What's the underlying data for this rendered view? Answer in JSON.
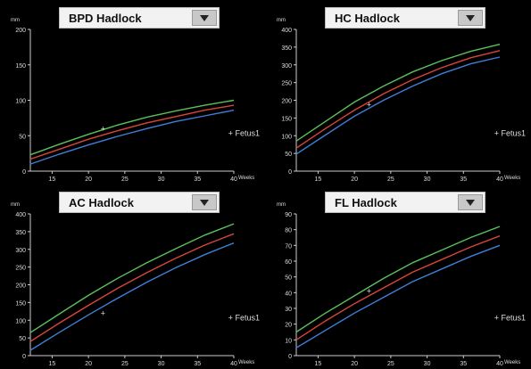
{
  "panels": [
    {
      "dropdown_label": "BPD Hadlock",
      "dropdown_icon": "chevron-down-icon",
      "chart_data": {
        "type": "line",
        "ylabel": "mm",
        "xlabel": "Weeks",
        "xlim": [
          12,
          40
        ],
        "ylim": [
          0,
          200
        ],
        "xticks": [
          15,
          20,
          25,
          30,
          35,
          40
        ],
        "yticks": [
          0,
          50,
          100,
          150,
          200
        ],
        "x": [
          12,
          16,
          20,
          24,
          28,
          32,
          36,
          40
        ],
        "series": [
          {
            "color": "#5bc05b",
            "values": [
              23,
              38,
              52,
              65,
              76,
              85,
              93,
              100
            ]
          },
          {
            "color": "#d9453a",
            "values": [
              17,
              31,
              45,
              57,
              68,
              77,
              86,
              93
            ]
          },
          {
            "color": "#3f7fd8",
            "values": [
              10,
              24,
              37,
              49,
              60,
              70,
              78,
              86
            ]
          }
        ],
        "marker": {
          "x": 22,
          "y": 60,
          "symbol": "+"
        },
        "legend": "+ Fetus1"
      }
    },
    {
      "dropdown_label": "HC Hadlock",
      "dropdown_icon": "chevron-down-icon",
      "chart_data": {
        "type": "line",
        "ylabel": "mm",
        "xlabel": "Weeks",
        "xlim": [
          12,
          40
        ],
        "ylim": [
          0,
          400
        ],
        "xticks": [
          15,
          20,
          25,
          30,
          35,
          40
        ],
        "yticks": [
          0,
          50,
          100,
          150,
          200,
          250,
          300,
          350,
          400
        ],
        "x": [
          12,
          16,
          20,
          24,
          28,
          32,
          36,
          40
        ],
        "series": [
          {
            "color": "#5bc05b",
            "values": [
              85,
              140,
              195,
              240,
              280,
              312,
              338,
              358
            ]
          },
          {
            "color": "#d9453a",
            "values": [
              65,
              120,
              172,
              218,
              258,
              292,
              320,
              340
            ]
          },
          {
            "color": "#3f7fd8",
            "values": [
              48,
              102,
              155,
              200,
              240,
              275,
              303,
              322
            ]
          }
        ],
        "marker": {
          "x": 22,
          "y": 188,
          "symbol": "+"
        },
        "legend": "+ Fetus1"
      }
    },
    {
      "dropdown_label": "AC Hadlock",
      "dropdown_icon": "chevron-down-icon",
      "chart_data": {
        "type": "line",
        "ylabel": "mm",
        "xlabel": "Weeks",
        "xlim": [
          12,
          40
        ],
        "ylim": [
          0,
          400
        ],
        "xticks": [
          15,
          20,
          25,
          30,
          35,
          40
        ],
        "yticks": [
          0,
          50,
          100,
          150,
          200,
          250,
          300,
          350,
          400
        ],
        "x": [
          12,
          16,
          20,
          24,
          28,
          32,
          36,
          40
        ],
        "series": [
          {
            "color": "#5bc05b",
            "values": [
              65,
              118,
              170,
              218,
              262,
              302,
              340,
              372
            ]
          },
          {
            "color": "#d9453a",
            "values": [
              40,
              92,
              142,
              190,
              234,
              275,
              312,
              344
            ]
          },
          {
            "color": "#3f7fd8",
            "values": [
              15,
              66,
              115,
              162,
              207,
              248,
              285,
              318
            ]
          }
        ],
        "marker": {
          "x": 22,
          "y": 120,
          "symbol": "+"
        },
        "legend": "+ Fetus1"
      }
    },
    {
      "dropdown_label": "FL Hadlock",
      "dropdown_icon": "chevron-down-icon",
      "chart_data": {
        "type": "line",
        "ylabel": "mm",
        "xlabel": "Weeks",
        "xlim": [
          12,
          40
        ],
        "ylim": [
          0,
          90
        ],
        "xticks": [
          15,
          20,
          25,
          30,
          35,
          40
        ],
        "yticks": [
          0,
          10,
          20,
          30,
          40,
          50,
          60,
          70,
          80,
          90
        ],
        "x": [
          12,
          16,
          20,
          24,
          28,
          32,
          36,
          40
        ],
        "series": [
          {
            "color": "#5bc05b",
            "values": [
              15,
              27,
              38,
              49,
              59,
              67,
              75,
              82
            ]
          },
          {
            "color": "#d9453a",
            "values": [
              10,
              22,
              33,
              43,
              53,
              61,
              69,
              76
            ]
          },
          {
            "color": "#3f7fd8",
            "values": [
              5,
              16,
              27,
              37,
              47,
              55,
              63,
              70
            ]
          }
        ],
        "marker": {
          "x": 22,
          "y": 41,
          "symbol": "+"
        },
        "legend": "+ Fetus1"
      }
    }
  ]
}
